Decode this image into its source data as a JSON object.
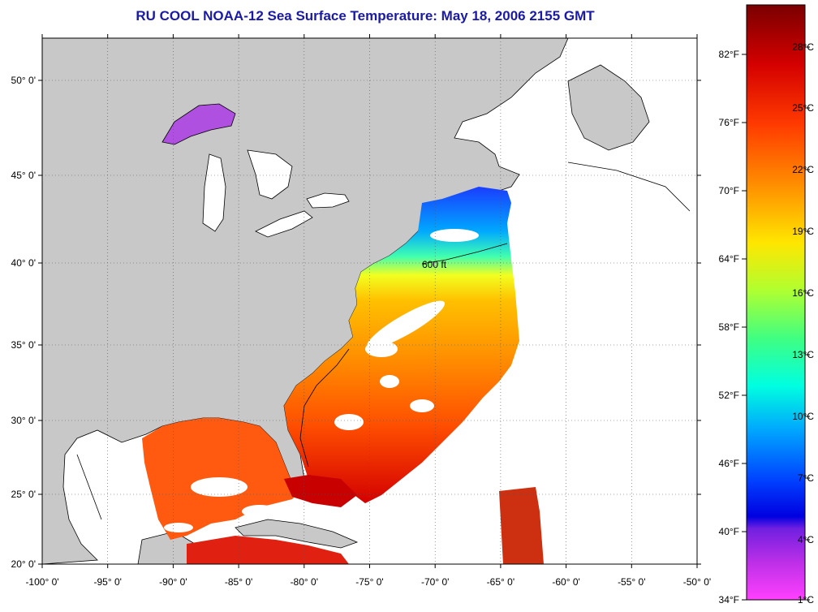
{
  "title": "RU COOL  NOAA-12  Sea Surface Temperature:  May 18, 2006 2155 GMT",
  "map": {
    "lon_ticks": [
      "-100° 0'",
      "-95° 0'",
      "-90° 0'",
      "-85° 0'",
      "-80° 0'",
      "-75° 0'",
      "-70° 0'",
      "-65° 0'",
      "-60° 0'",
      "-55° 0'",
      "-50° 0'"
    ],
    "lat_ticks": [
      "50° 0'",
      "45° 0'",
      "40° 0'",
      "35° 0'",
      "30° 0'",
      "25° 0'",
      "20° 0'"
    ],
    "isobath_label": "600 ft",
    "colors": {
      "land": "#c8c8c8",
      "ocean_nodata": "#ffffff",
      "grid": "#555555"
    }
  },
  "colorbar": {
    "fahrenheit": [
      "82°F",
      "76°F",
      "70°F",
      "64°F",
      "58°F",
      "52°F",
      "46°F",
      "40°F",
      "34°F"
    ],
    "celsius": [
      "28°C",
      "25°C",
      "22°C",
      "19°C",
      "16°C",
      "13°C",
      "10°C",
      "7°C",
      "4°C",
      "1°C"
    ],
    "colors": [
      "#8b0000",
      "#ff2200",
      "#ff8c00",
      "#ffff00",
      "#80ff40",
      "#00ffff",
      "#0080ff",
      "#0000ff",
      "#8000ff",
      "#ff00ff"
    ]
  }
}
